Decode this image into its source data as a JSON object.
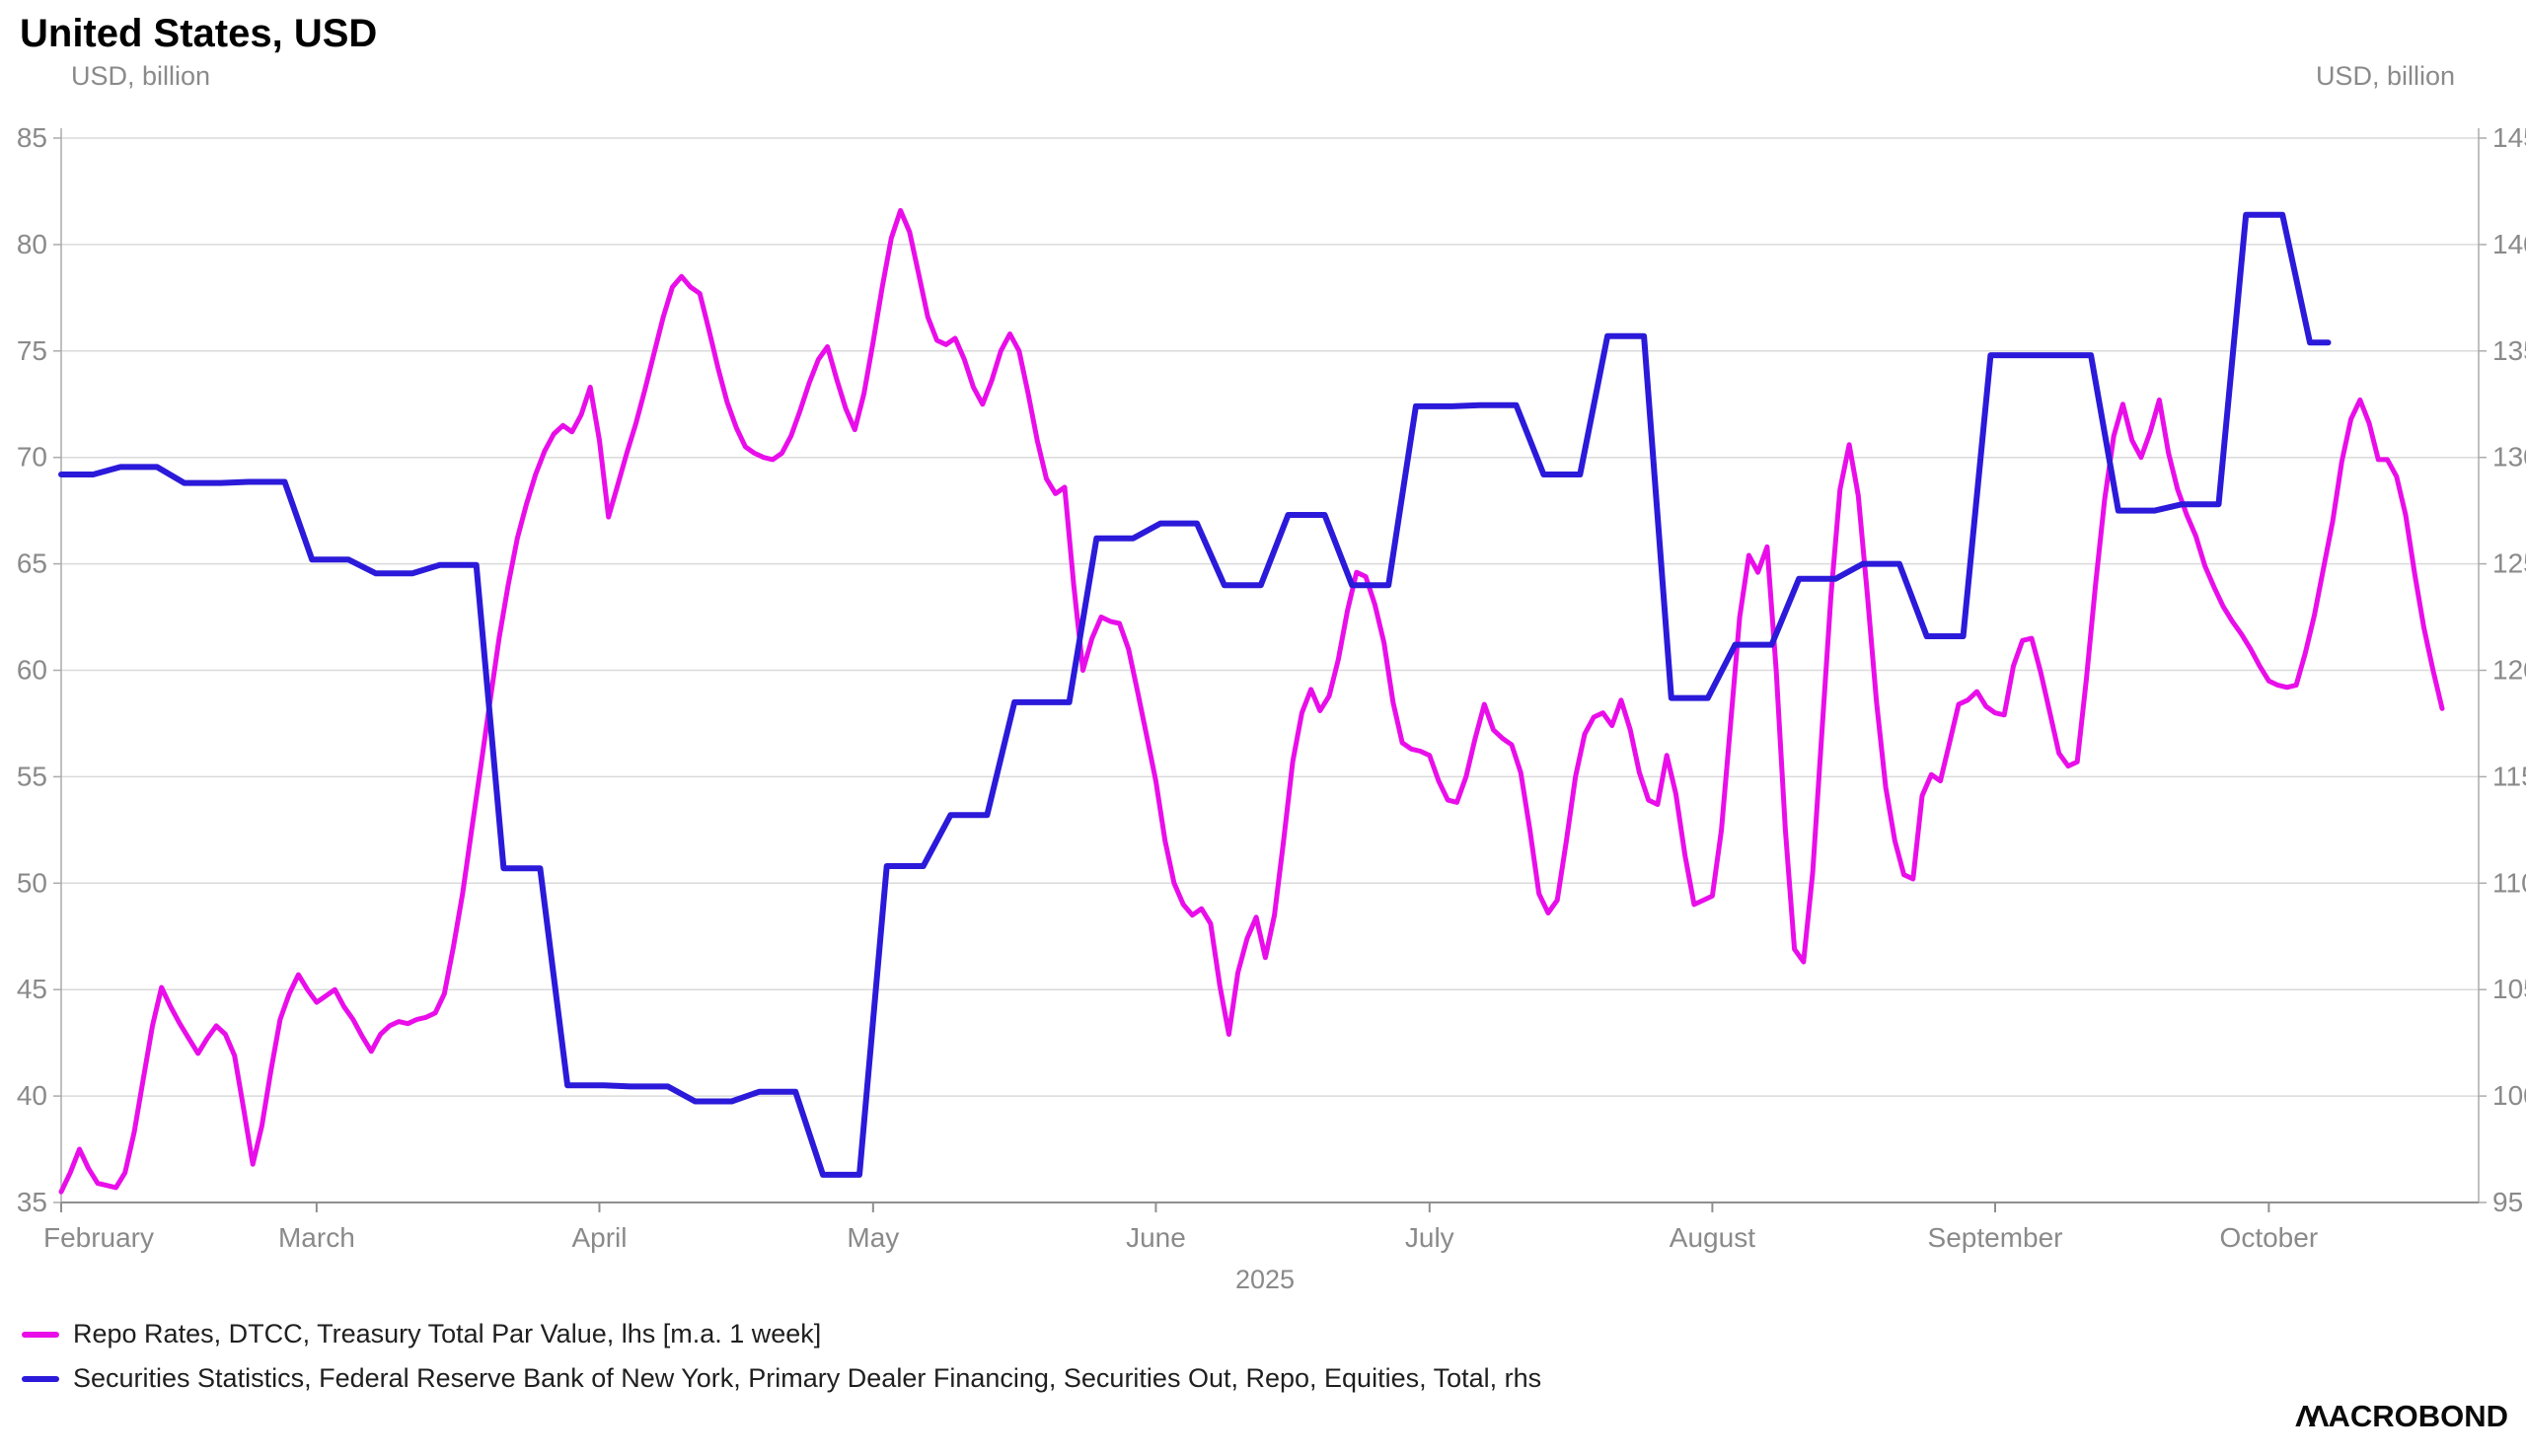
{
  "header": {
    "title": "United States, USD",
    "left_axis_unit": "USD, billion",
    "right_axis_unit": "USD, billion"
  },
  "colors": {
    "magenta_series": "#E90EE9",
    "blue_series": "#2B1AD9",
    "gridline": "#DADADA",
    "axis_line": "#ABABAB",
    "bottom_axis_line": "#8F8F8F",
    "axis_text": "#8A8A8A",
    "legend_text": "#1F1F1F"
  },
  "legend": [
    {
      "label": "Repo Rates, DTCC, Treasury Total Par Value, lhs [m.a. 1 week]",
      "color": "#E90EE9"
    },
    {
      "label": "Securities Statistics, Federal Reserve Bank of New York, Primary Dealer Financing, Securities Out, Repo, Equities, Total, rhs",
      "color": "#2B1AD9"
    }
  ],
  "branding": {
    "logo_text": "MACROBOND",
    "logo_display_prefix": "ΛΛ",
    "logo_display_rest": "ACROBOND"
  },
  "chart_data": {
    "type": "line",
    "title": "United States, USD",
    "x_axis": {
      "year_label": "2025",
      "domain_days": [
        0,
        265
      ],
      "months": [
        {
          "label": "February",
          "day": 0
        },
        {
          "label": "March",
          "day": 28
        },
        {
          "label": "April",
          "day": 59
        },
        {
          "label": "May",
          "day": 89
        },
        {
          "label": "June",
          "day": 120
        },
        {
          "label": "July",
          "day": 150
        },
        {
          "label": "August",
          "day": 181
        },
        {
          "label": "September",
          "day": 212
        },
        {
          "label": "October",
          "day": 242
        }
      ]
    },
    "left_axis": {
      "label": "USD, billion",
      "min": 35,
      "max": 85,
      "tick_step": 5
    },
    "right_axis": {
      "label": "USD, billion",
      "min": 95,
      "max": 145,
      "tick_step": 5
    },
    "grid": true,
    "legend_position": "bottom-left",
    "series": [
      {
        "name": "Repo Rates, DTCC, Treasury Total Par Value, lhs [m.a. 1 week]",
        "axis": "left",
        "color": "#E90EE9",
        "line_width": 5,
        "style": "line",
        "points": [
          [
            0,
            35.5
          ],
          [
            1,
            36.4
          ],
          [
            2,
            37.5
          ],
          [
            3,
            36.6
          ],
          [
            4,
            35.9
          ],
          [
            5,
            35.8
          ],
          [
            6,
            35.7
          ],
          [
            7,
            36.4
          ],
          [
            8,
            38.3
          ],
          [
            9,
            40.8
          ],
          [
            10,
            43.3
          ],
          [
            11,
            45.1
          ],
          [
            12,
            44.2
          ],
          [
            13,
            43.4
          ],
          [
            14,
            42.7
          ],
          [
            15,
            42.0
          ],
          [
            16,
            42.7
          ],
          [
            17,
            43.3
          ],
          [
            18,
            42.9
          ],
          [
            19,
            41.9
          ],
          [
            20,
            39.4
          ],
          [
            21,
            36.8
          ],
          [
            22,
            38.6
          ],
          [
            23,
            41.2
          ],
          [
            24,
            43.6
          ],
          [
            25,
            44.8
          ],
          [
            26,
            45.7
          ],
          [
            27,
            45.0
          ],
          [
            28,
            44.4
          ],
          [
            29,
            44.7
          ],
          [
            30,
            45.0
          ],
          [
            31,
            44.2
          ],
          [
            32,
            43.6
          ],
          [
            33,
            42.8
          ],
          [
            34,
            42.1
          ],
          [
            35,
            42.9
          ],
          [
            36,
            43.3
          ],
          [
            37,
            43.5
          ],
          [
            38,
            43.4
          ],
          [
            39,
            43.6
          ],
          [
            40,
            43.7
          ],
          [
            41,
            43.9
          ],
          [
            42,
            44.8
          ],
          [
            43,
            47.0
          ],
          [
            44,
            49.5
          ],
          [
            45,
            52.5
          ],
          [
            46,
            55.5
          ],
          [
            47,
            58.5
          ],
          [
            48,
            61.5
          ],
          [
            49,
            64.0
          ],
          [
            50,
            66.2
          ],
          [
            51,
            67.8
          ],
          [
            52,
            69.2
          ],
          [
            53,
            70.3
          ],
          [
            54,
            71.1
          ],
          [
            55,
            71.5
          ],
          [
            56,
            71.2
          ],
          [
            57,
            72.0
          ],
          [
            58,
            73.3
          ],
          [
            59,
            70.8
          ],
          [
            60,
            67.2
          ],
          [
            61,
            68.7
          ],
          [
            62,
            70.2
          ],
          [
            63,
            71.6
          ],
          [
            64,
            73.2
          ],
          [
            65,
            74.9
          ],
          [
            66,
            76.6
          ],
          [
            67,
            78.0
          ],
          [
            68,
            78.5
          ],
          [
            69,
            78.0
          ],
          [
            70,
            77.7
          ],
          [
            71,
            76.0
          ],
          [
            72,
            74.2
          ],
          [
            73,
            72.6
          ],
          [
            74,
            71.4
          ],
          [
            75,
            70.5
          ],
          [
            76,
            70.2
          ],
          [
            77,
            70.0
          ],
          [
            78,
            69.9
          ],
          [
            79,
            70.2
          ],
          [
            80,
            71.0
          ],
          [
            81,
            72.2
          ],
          [
            82,
            73.5
          ],
          [
            83,
            74.6
          ],
          [
            84,
            75.2
          ],
          [
            85,
            73.7
          ],
          [
            86,
            72.3
          ],
          [
            87,
            71.3
          ],
          [
            88,
            73.0
          ],
          [
            89,
            75.4
          ],
          [
            90,
            78.0
          ],
          [
            91,
            80.3
          ],
          [
            92,
            81.6
          ],
          [
            93,
            80.6
          ],
          [
            94,
            78.6
          ],
          [
            95,
            76.6
          ],
          [
            96,
            75.5
          ],
          [
            97,
            75.3
          ],
          [
            98,
            75.6
          ],
          [
            99,
            74.6
          ],
          [
            100,
            73.3
          ],
          [
            101,
            72.5
          ],
          [
            102,
            73.6
          ],
          [
            103,
            75.0
          ],
          [
            104,
            75.8
          ],
          [
            105,
            75.0
          ],
          [
            106,
            73.0
          ],
          [
            107,
            70.8
          ],
          [
            108,
            69.0
          ],
          [
            109,
            68.3
          ],
          [
            110,
            68.6
          ],
          [
            111,
            64.0
          ],
          [
            112,
            60.0
          ],
          [
            113,
            61.5
          ],
          [
            114,
            62.5
          ],
          [
            115,
            62.3
          ],
          [
            116,
            62.2
          ],
          [
            117,
            61.0
          ],
          [
            118,
            59.0
          ],
          [
            119,
            56.9
          ],
          [
            120,
            54.8
          ],
          [
            121,
            52.0
          ],
          [
            122,
            50.0
          ],
          [
            123,
            49.0
          ],
          [
            124,
            48.5
          ],
          [
            125,
            48.8
          ],
          [
            126,
            48.1
          ],
          [
            127,
            45.2
          ],
          [
            128,
            42.9
          ],
          [
            129,
            45.8
          ],
          [
            130,
            47.4
          ],
          [
            131,
            48.4
          ],
          [
            132,
            46.5
          ],
          [
            133,
            48.5
          ],
          [
            134,
            52.0
          ],
          [
            135,
            55.7
          ],
          [
            136,
            58.0
          ],
          [
            137,
            59.1
          ],
          [
            138,
            58.1
          ],
          [
            139,
            58.8
          ],
          [
            140,
            60.5
          ],
          [
            141,
            62.8
          ],
          [
            142,
            64.6
          ],
          [
            143,
            64.4
          ],
          [
            144,
            63.1
          ],
          [
            145,
            61.3
          ],
          [
            146,
            58.5
          ],
          [
            147,
            56.6
          ],
          [
            148,
            56.3
          ],
          [
            149,
            56.2
          ],
          [
            150,
            56.0
          ],
          [
            151,
            54.8
          ],
          [
            152,
            53.9
          ],
          [
            153,
            53.8
          ],
          [
            154,
            55.0
          ],
          [
            155,
            56.8
          ],
          [
            156,
            58.4
          ],
          [
            157,
            57.2
          ],
          [
            158,
            56.8
          ],
          [
            159,
            56.5
          ],
          [
            160,
            55.2
          ],
          [
            161,
            52.5
          ],
          [
            162,
            49.5
          ],
          [
            163,
            48.6
          ],
          [
            164,
            49.2
          ],
          [
            165,
            52.0
          ],
          [
            166,
            55.0
          ],
          [
            167,
            57.0
          ],
          [
            168,
            57.8
          ],
          [
            169,
            58.0
          ],
          [
            170,
            57.4
          ],
          [
            171,
            58.6
          ],
          [
            172,
            57.2
          ],
          [
            173,
            55.2
          ],
          [
            174,
            53.9
          ],
          [
            175,
            53.7
          ],
          [
            176,
            56.0
          ],
          [
            177,
            54.2
          ],
          [
            178,
            51.3
          ],
          [
            179,
            49.0
          ],
          [
            180,
            49.2
          ],
          [
            181,
            49.4
          ],
          [
            182,
            52.5
          ],
          [
            183,
            57.5
          ],
          [
            184,
            62.5
          ],
          [
            185,
            65.4
          ],
          [
            186,
            64.6
          ],
          [
            187,
            65.8
          ],
          [
            188,
            60.0
          ],
          [
            189,
            52.5
          ],
          [
            190,
            46.9
          ],
          [
            191,
            46.3
          ],
          [
            192,
            50.5
          ],
          [
            193,
            57.0
          ],
          [
            194,
            63.5
          ],
          [
            195,
            68.5
          ],
          [
            196,
            70.6
          ],
          [
            197,
            68.2
          ],
          [
            198,
            63.5
          ],
          [
            199,
            58.5
          ],
          [
            200,
            54.5
          ],
          [
            201,
            52.0
          ],
          [
            202,
            50.4
          ],
          [
            203,
            50.2
          ],
          [
            204,
            54.1
          ],
          [
            205,
            55.1
          ],
          [
            206,
            54.8
          ],
          [
            207,
            56.6
          ],
          [
            208,
            58.4
          ],
          [
            209,
            58.6
          ],
          [
            210,
            59.0
          ],
          [
            211,
            58.3
          ],
          [
            212,
            58.0
          ],
          [
            213,
            57.9
          ],
          [
            214,
            60.2
          ],
          [
            215,
            61.4
          ],
          [
            216,
            61.5
          ],
          [
            217,
            59.9
          ],
          [
            218,
            58.0
          ],
          [
            219,
            56.1
          ],
          [
            220,
            55.5
          ],
          [
            221,
            55.7
          ],
          [
            222,
            59.6
          ],
          [
            223,
            64.0
          ],
          [
            224,
            68.0
          ],
          [
            225,
            71.0
          ],
          [
            226,
            72.5
          ],
          [
            227,
            70.8
          ],
          [
            228,
            70.0
          ],
          [
            229,
            71.2
          ],
          [
            230,
            72.7
          ],
          [
            231,
            70.2
          ],
          [
            232,
            68.5
          ],
          [
            233,
            67.3
          ],
          [
            234,
            66.3
          ],
          [
            235,
            64.9
          ],
          [
            236,
            63.9
          ],
          [
            237,
            63.0
          ],
          [
            238,
            62.3
          ],
          [
            239,
            61.7
          ],
          [
            240,
            61.0
          ],
          [
            241,
            60.2
          ],
          [
            242,
            59.5
          ],
          [
            243,
            59.3
          ],
          [
            244,
            59.2
          ],
          [
            245,
            59.3
          ],
          [
            246,
            60.8
          ],
          [
            247,
            62.6
          ],
          [
            248,
            64.8
          ],
          [
            249,
            67.0
          ],
          [
            250,
            69.8
          ],
          [
            251,
            71.8
          ],
          [
            252,
            72.7
          ],
          [
            253,
            71.6
          ],
          [
            254,
            69.9
          ],
          [
            255,
            69.9
          ],
          [
            256,
            69.1
          ],
          [
            257,
            67.3
          ],
          [
            258,
            64.5
          ],
          [
            259,
            62.0
          ],
          [
            260,
            60.0
          ],
          [
            261,
            58.2
          ]
        ]
      },
      {
        "name": "Securities Statistics, Federal Reserve Bank of New York, Primary Dealer Financing, Securities Out, Repo, Equities, Total, rhs",
        "axis": "right",
        "color": "#2B1AD9",
        "line_width": 6,
        "style": "step",
        "end_day": 248.5,
        "points": [
          [
            0,
            129.2
          ],
          [
            5,
            129.55
          ],
          [
            12,
            128.8
          ],
          [
            19,
            128.85
          ],
          [
            26,
            125.2
          ],
          [
            33,
            124.55
          ],
          [
            40,
            124.95
          ],
          [
            47,
            110.7
          ],
          [
            54,
            100.5
          ],
          [
            61,
            100.45
          ],
          [
            68,
            99.75
          ],
          [
            75,
            100.2
          ],
          [
            82,
            96.3
          ],
          [
            89,
            110.8
          ],
          [
            96,
            113.2
          ],
          [
            103,
            118.5
          ],
          [
            112,
            126.2
          ],
          [
            119,
            126.9
          ],
          [
            126,
            124.0
          ],
          [
            133,
            127.3
          ],
          [
            140,
            124.0
          ],
          [
            147,
            132.4
          ],
          [
            154,
            132.45
          ],
          [
            161,
            129.2
          ],
          [
            168,
            135.7
          ],
          [
            175,
            118.7
          ],
          [
            182,
            121.2
          ],
          [
            189,
            124.3
          ],
          [
            196,
            125.0
          ],
          [
            203,
            121.6
          ],
          [
            210,
            134.8
          ],
          [
            217,
            134.8
          ],
          [
            224,
            127.5
          ],
          [
            231,
            127.8
          ],
          [
            238,
            141.4
          ],
          [
            245,
            135.4
          ]
        ]
      }
    ]
  }
}
